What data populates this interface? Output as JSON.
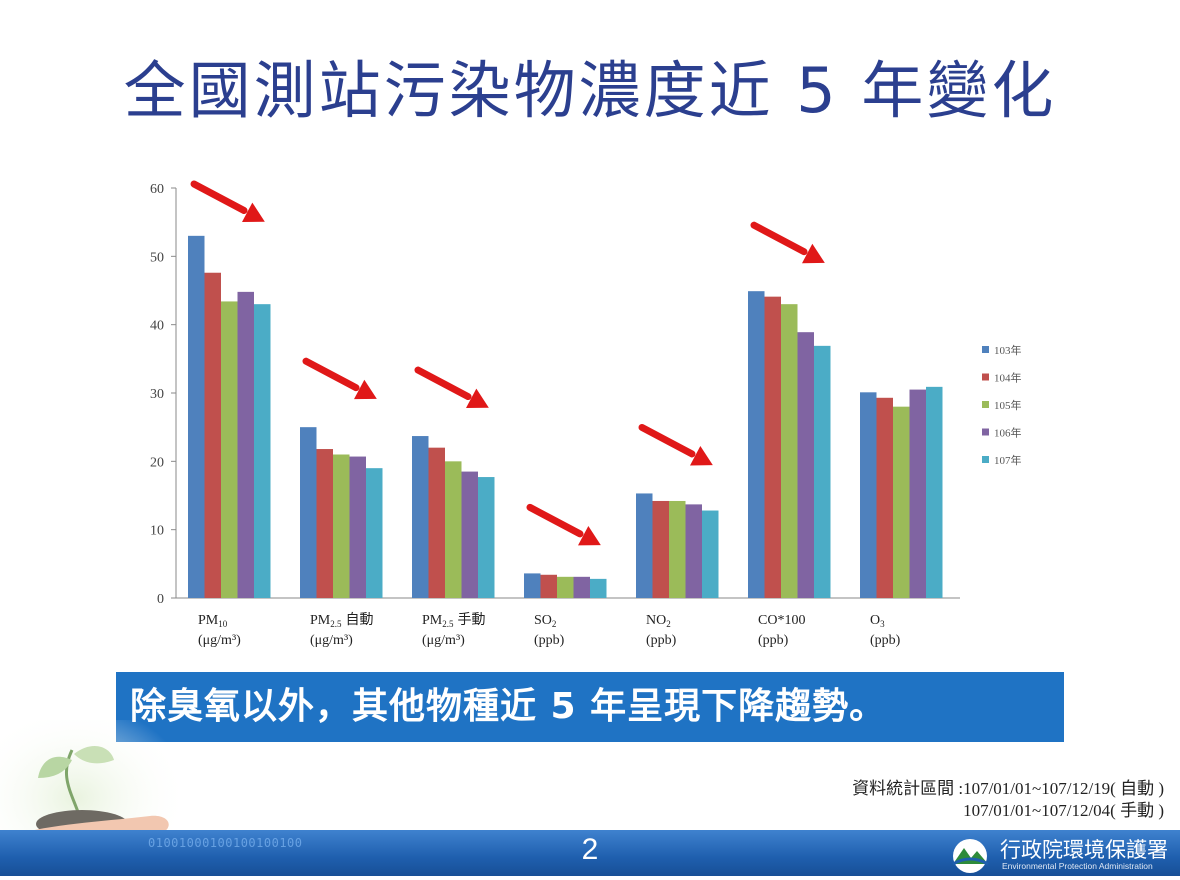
{
  "slide": {
    "title": "全國測站污染物濃度近 5 年變化",
    "banner": "除臭氧以外，其他物種近 5 年呈現下降趨勢。",
    "source_line1": "資料統計區間 :107/01/01~107/12/19( 自動 )",
    "source_line2": "107/01/01~107/12/04( 手動 )",
    "page_number": "2",
    "binary_text": "01001000100100100100",
    "org_name": "行政院環境保護署",
    "org_name_en": "Environmental Protection Administration"
  },
  "chart_data": {
    "type": "bar",
    "categories": [
      {
        "name": "PM",
        "sub": "10",
        "unit": "(μg/m³)"
      },
      {
        "name": "PM",
        "sub": "2.5",
        "extra": "自動",
        "unit": "(μg/m³)"
      },
      {
        "name": "PM",
        "sub": "2.5",
        "extra": "手動",
        "unit": "(μg/m³)"
      },
      {
        "name": "SO",
        "sub": "2",
        "unit": "(ppb)"
      },
      {
        "name": "NO",
        "sub": "2",
        "unit": "(ppb)"
      },
      {
        "name": "CO*100",
        "sub": "",
        "unit": "(ppb)"
      },
      {
        "name": "O",
        "sub": "3",
        "unit": "(ppb)"
      }
    ],
    "series": [
      {
        "name": "103年",
        "color": "#4f81bd",
        "values": [
          53,
          25,
          23.7,
          3.6,
          15.3,
          44.9,
          30.1
        ]
      },
      {
        "name": "104年",
        "color": "#c0504d",
        "values": [
          47.6,
          21.8,
          22.0,
          3.4,
          14.2,
          44.1,
          29.3
        ]
      },
      {
        "name": "105年",
        "color": "#9bbb59",
        "values": [
          43.4,
          21.0,
          20.0,
          3.1,
          14.2,
          43.0,
          28.0
        ]
      },
      {
        "name": "106年",
        "color": "#8064a2",
        "values": [
          44.8,
          20.7,
          18.5,
          3.1,
          13.7,
          38.9,
          30.5
        ]
      },
      {
        "name": "107年",
        "color": "#4bacc6",
        "values": [
          43.0,
          19.0,
          17.7,
          2.8,
          12.8,
          36.9,
          30.9
        ]
      }
    ],
    "ylim": [
      0,
      60
    ],
    "yticks": [
      0,
      10,
      20,
      30,
      40,
      50,
      60
    ],
    "legend_position": "right",
    "trend_arrows_on": [
      "PM10",
      "PM2.5 自動",
      "PM2.5 手動",
      "SO2",
      "NO2",
      "CO*100"
    ],
    "grid": false
  }
}
